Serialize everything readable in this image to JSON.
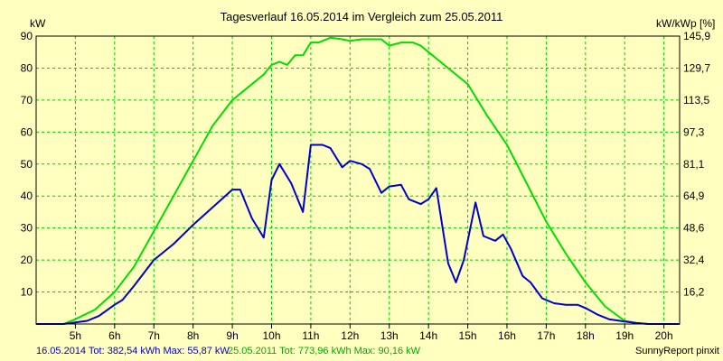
{
  "chart_data": {
    "type": "line",
    "title": "Tagesverlauf 16.05.2014 im Vergleich zum 25.05.2011",
    "ylabel_left": "kW",
    "ylabel_right": "kW/kWp [%]",
    "x_ticks": [
      "5h",
      "6h",
      "7h",
      "8h",
      "9h",
      "10h",
      "11h",
      "12h",
      "13h",
      "14h",
      "15h",
      "16h",
      "17h",
      "18h",
      "19h",
      "20h"
    ],
    "x_tick_values": [
      5,
      6,
      7,
      8,
      9,
      10,
      11,
      12,
      13,
      14,
      15,
      16,
      17,
      18,
      19,
      20
    ],
    "xlim": [
      4,
      20.4
    ],
    "y_ticks_left": [
      "10",
      "20",
      "30",
      "40",
      "50",
      "60",
      "70",
      "80",
      "90"
    ],
    "y_tick_values_left": [
      10,
      20,
      30,
      40,
      50,
      60,
      70,
      80,
      90
    ],
    "y_ticks_right": [
      "16,2",
      "32,4",
      "48,6",
      "64,9",
      "81,1",
      "97,3",
      "113,5",
      "129,7",
      "145,9"
    ],
    "ylim": [
      0,
      90
    ],
    "grid": true,
    "background_color": "#ffffc0",
    "grid_color": "#00cc00",
    "series": [
      {
        "name": "16.05.2014",
        "color": "#0000cc",
        "x": [
          4.0,
          4.7,
          5.0,
          5.3,
          5.6,
          6.0,
          6.2,
          6.5,
          7.0,
          7.5,
          8.0,
          8.5,
          9.0,
          9.2,
          9.5,
          9.8,
          10.0,
          10.2,
          10.5,
          10.8,
          11.0,
          11.3,
          11.5,
          11.8,
          12.0,
          12.3,
          12.5,
          12.8,
          13.0,
          13.3,
          13.5,
          13.8,
          14.0,
          14.2,
          14.5,
          14.7,
          14.9,
          15.2,
          15.4,
          15.7,
          15.9,
          16.1,
          16.4,
          16.6,
          16.9,
          17.2,
          17.5,
          17.8,
          18.0,
          18.3,
          18.6,
          19.0,
          19.3,
          19.6,
          20.0,
          20.4
        ],
        "y": [
          0,
          0,
          0.5,
          1,
          2.5,
          6,
          7.5,
          12,
          20,
          25,
          31,
          36.5,
          42,
          42,
          33,
          27,
          45,
          50,
          44,
          35,
          56,
          56,
          55,
          49,
          51,
          50,
          48.5,
          41,
          43,
          43.5,
          39,
          37.5,
          39,
          42.5,
          19,
          13,
          20,
          38,
          27.5,
          26,
          28,
          23.5,
          15,
          13,
          8,
          6.5,
          6,
          6,
          5,
          3,
          1.5,
          0.8,
          0.3,
          0,
          0,
          0
        ]
      },
      {
        "name": "25.05.2011",
        "color": "#00dd00",
        "x": [
          4.0,
          4.7,
          5.0,
          5.5,
          6.0,
          6.5,
          7.0,
          7.5,
          8.0,
          8.5,
          9.0,
          9.5,
          9.8,
          10.0,
          10.2,
          10.4,
          10.6,
          10.8,
          11.0,
          11.2,
          11.5,
          11.8,
          12.0,
          12.3,
          12.5,
          12.8,
          13.0,
          13.3,
          13.6,
          13.8,
          14.0,
          14.3,
          14.6,
          15.0,
          15.5,
          16.0,
          16.5,
          17.0,
          17.5,
          18.0,
          18.5,
          19.0,
          19.3,
          19.6,
          20.0,
          20.4
        ],
        "y": [
          0,
          0,
          1.5,
          4.5,
          10,
          18,
          29,
          40,
          51,
          62,
          70,
          75,
          78,
          81,
          82,
          81,
          84,
          84,
          88,
          88,
          89.5,
          89,
          88.5,
          89,
          89,
          89,
          87,
          88,
          88,
          87,
          85,
          82,
          79,
          75,
          65,
          56,
          44,
          32,
          22,
          13,
          5.5,
          1,
          0.3,
          0,
          0,
          0
        ]
      }
    ],
    "footer": {
      "series1_text": "16.05.2014 Tot: 382,54 kWh Max: 55,87 kW",
      "series2_text": "25.05.2011 Tot: 773,96 kWh Max: 90,16 kW",
      "credit": "SunnyReport pinxit"
    }
  }
}
